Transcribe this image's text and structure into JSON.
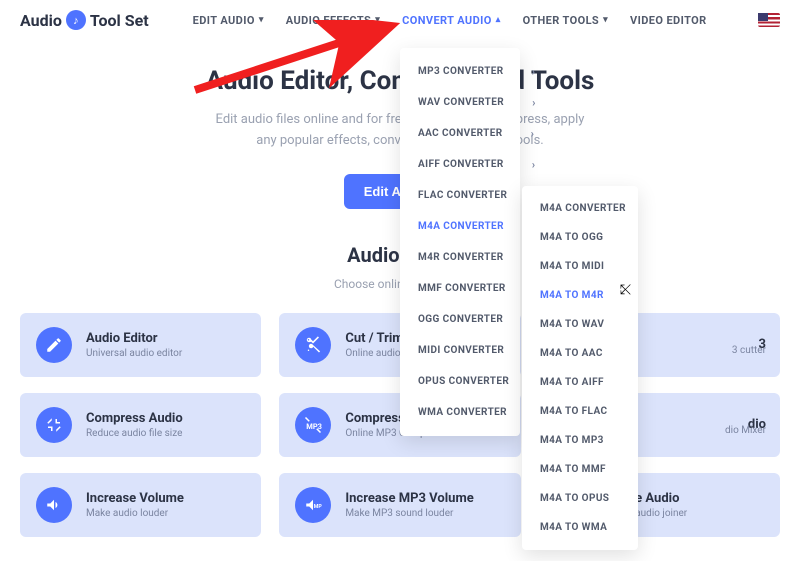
{
  "brand": {
    "pre": "Audio",
    "post": "Tool Set"
  },
  "nav": {
    "edit": "EDIT AUDIO",
    "effects": "AUDIO EFFECTS",
    "convert": "CONVERT AUDIO",
    "other": "OTHER TOOLS",
    "video": "VIDEO EDITOR"
  },
  "hero": {
    "title": "Audio Editor, Converter and Tools",
    "line1": "Edit audio files online and for free: trim and cut, compress, apply",
    "line2": "any popular effects, convert with our simple tools.",
    "ctaPrimary": "Edit Audio ›"
  },
  "section": {
    "title": "Audio Tools",
    "sub": "Choose online audio tool"
  },
  "cards": [
    {
      "t": "Audio Editor",
      "s": "Universal audio editor",
      "icon": "pencil"
    },
    {
      "t": "Cut / Trim",
      "s": "Online audio cutter",
      "icon": "scissors"
    },
    {
      "t": "Cut MP3",
      "s": "Online MP3 cutter",
      "icon": "scissors",
      "frag": "3",
      "frag2": "3 cutter"
    },
    {
      "t": "Compress Audio",
      "s": "Reduce audio file size",
      "icon": "compress"
    },
    {
      "t": "Compress MP3",
      "s": "Online MP3 Compressor",
      "icon": "compress-mp3"
    },
    {
      "t": "Mix Audio",
      "s": "Online Audio Mixer",
      "icon": "mix",
      "frag": "dio",
      "frag2": "dio Mixer"
    },
    {
      "t": "Increase Volume",
      "s": "Make audio louder",
      "icon": "vol"
    },
    {
      "t": "Increase MP3 Volume",
      "s": "Make MP3 sound louder",
      "icon": "vol-mp3"
    },
    {
      "t": "Merge Audio",
      "s": "Online audio joiner",
      "icon": "merge"
    }
  ],
  "menu1": [
    "MP3 CONVERTER",
    "WAV CONVERTER",
    "AAC CONVERTER",
    "AIFF CONVERTER",
    "FLAC CONVERTER",
    "M4A CONVERTER",
    "M4R CONVERTER",
    "MMF CONVERTER",
    "OGG CONVERTER",
    "MIDI CONVERTER",
    "OPUS CONVERTER",
    "WMA CONVERTER"
  ],
  "menu1_hi_index": 5,
  "menu2": [
    "M4A CONVERTER",
    "M4A TO OGG",
    "M4A TO MIDI",
    "M4A TO M4R",
    "M4A TO WAV",
    "M4A TO AAC",
    "M4A TO AIFF",
    "M4A TO FLAC",
    "M4A TO MP3",
    "M4A TO MMF",
    "M4A TO OPUS",
    "M4A TO WMA"
  ],
  "menu2_hi_index": 3,
  "colors": {
    "accent": "#4f73ff",
    "cardBg": "#dbe3fb",
    "textMuted": "#9aa1b1",
    "arrow": "#f01f1f"
  }
}
